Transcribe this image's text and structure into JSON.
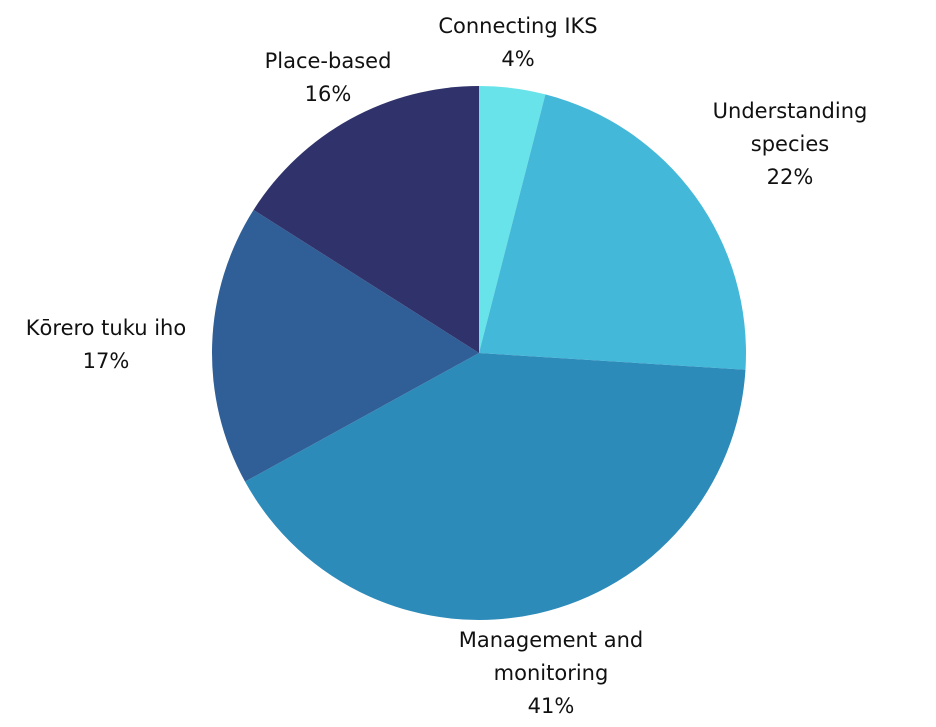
{
  "chart_data": {
    "type": "pie",
    "categories": [
      "Connecting IKS",
      "Understanding species",
      "Management and monitoring",
      "Kōrero tuku iho",
      "Place-based"
    ],
    "values": [
      4,
      22,
      41,
      17,
      16
    ],
    "value_labels": [
      "4%",
      "22%",
      "41%",
      "17%",
      "16%"
    ],
    "colors": [
      "#67e3e9",
      "#44b8d8",
      "#2d8bba",
      "#2f5f96",
      "#30336b"
    ]
  }
}
